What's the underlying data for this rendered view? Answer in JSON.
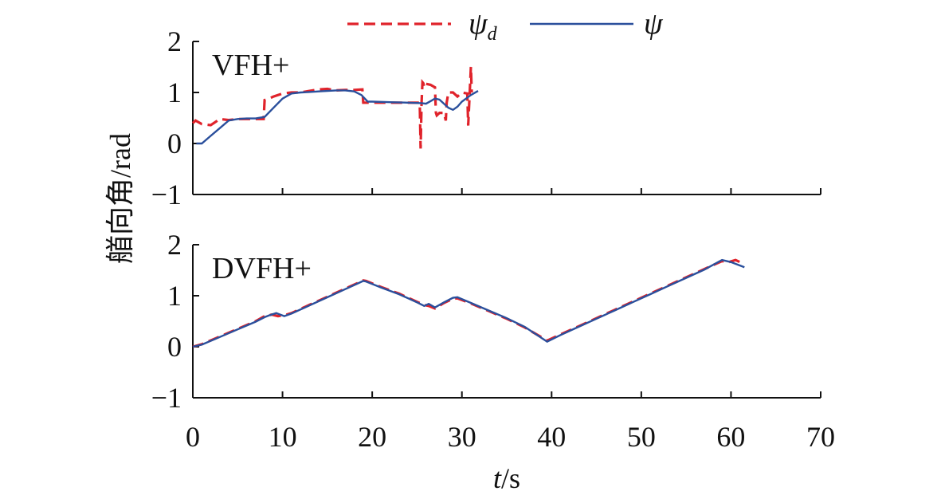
{
  "chart_data": {
    "type": "line",
    "ylabel": "艏向角/rad",
    "xlabel_italic": "t",
    "xlabel_suffix": "/s",
    "xlim": [
      0,
      70
    ],
    "xticks": [
      "0",
      "10",
      "20",
      "30",
      "40",
      "50",
      "60",
      "70"
    ],
    "legend": {
      "placement": "top-center",
      "items": [
        {
          "symbol": "ψ",
          "subscript": "d",
          "color": "#e0232b",
          "style": "dashed"
        },
        {
          "symbol": "ψ",
          "subscript": "",
          "color": "#2a4f9c",
          "style": "solid"
        }
      ]
    },
    "panels": [
      {
        "label": "VFH+",
        "ylim": [
          -1,
          2
        ],
        "yticks": [
          "2",
          "1",
          "0",
          "−1"
        ],
        "series": [
          {
            "style": "dashed",
            "x": [
              0,
              0.3,
              1,
              2,
              3,
              4,
              5,
              6,
              7,
              7.9,
              8,
              8.5,
              9,
              10,
              11,
              12,
              13,
              14,
              15,
              16,
              17,
              18,
              18.9,
              19,
              20,
              22,
              24,
              25.3,
              25.4,
              25.5,
              25.6,
              25.7,
              25.8,
              26,
              26.5,
              27,
              27.1,
              27.2,
              27.5,
              28,
              28.2,
              28.3,
              28.5,
              29,
              29.5,
              30,
              30.6,
              30.7,
              31,
              31.1
            ],
            "y": [
              0.4,
              0.45,
              0.38,
              0.36,
              0.48,
              0.46,
              0.48,
              0.48,
              0.48,
              0.48,
              0.85,
              0.88,
              0.92,
              0.98,
              1.0,
              1.0,
              1.03,
              1.06,
              1.07,
              1.04,
              1.05,
              1.05,
              1.06,
              0.8,
              0.8,
              0.8,
              0.8,
              0.8,
              -0.1,
              0.8,
              1.2,
              1.18,
              1.1,
              1.17,
              1.15,
              1.1,
              0.6,
              0.55,
              0.6,
              0.6,
              0.45,
              0.8,
              1.0,
              1.0,
              0.92,
              1.0,
              0.98,
              0.35,
              1.5,
              1.0
            ]
          },
          {
            "style": "solid",
            "x": [
              0.4,
              1,
              2,
              3,
              4,
              5,
              6,
              7,
              8,
              9,
              10,
              11,
              12,
              13,
              14,
              15,
              16,
              17,
              18,
              18.8,
              19.5,
              20,
              22,
              24,
              25.5,
              26,
              26.5,
              27,
              27.5,
              28,
              28.5,
              29,
              29.5,
              30,
              31,
              31.8
            ],
            "y": [
              0.0,
              0.0,
              0.15,
              0.3,
              0.45,
              0.48,
              0.49,
              0.49,
              0.52,
              0.7,
              0.88,
              0.98,
              1.0,
              1.01,
              1.02,
              1.03,
              1.04,
              1.04,
              1.02,
              0.95,
              0.82,
              0.82,
              0.81,
              0.8,
              0.79,
              0.78,
              0.83,
              0.88,
              0.86,
              0.78,
              0.7,
              0.66,
              0.72,
              0.82,
              0.95,
              1.03
            ]
          }
        ]
      },
      {
        "label": "DVFH+",
        "ylim": [
          -1,
          2
        ],
        "yticks": [
          "2",
          "1",
          "0",
          "−1"
        ],
        "series": [
          {
            "style": "dashed",
            "x": [
              0,
              1,
              3,
              5,
              7,
              8,
              8.8,
              9.5,
              10.3,
              11,
              13,
              15,
              17,
              18.5,
              19,
              19.3,
              21,
              23,
              25,
              25.8,
              26.3,
              27,
              28,
              29,
              29.5,
              31,
              33,
              35,
              37,
              39.5,
              41,
              43,
              45,
              47,
              49,
              51,
              53,
              55,
              57,
              59,
              59.6,
              60.5,
              61
            ],
            "y": [
              0.0,
              0.05,
              0.2,
              0.35,
              0.5,
              0.6,
              0.63,
              0.6,
              0.62,
              0.66,
              0.82,
              0.98,
              1.14,
              1.26,
              1.3,
              1.29,
              1.17,
              1.04,
              0.88,
              0.82,
              0.8,
              0.75,
              0.86,
              0.94,
              0.95,
              0.85,
              0.7,
              0.55,
              0.38,
              0.12,
              0.24,
              0.4,
              0.56,
              0.72,
              0.88,
              1.04,
              1.2,
              1.36,
              1.52,
              1.68,
              1.65,
              1.7,
              1.66
            ]
          },
          {
            "style": "solid",
            "x": [
              0,
              1,
              3,
              5,
              7,
              8,
              8.6,
              9.3,
              10.2,
              11,
              13,
              15,
              17,
              18.5,
              19,
              19.3,
              21,
              23,
              25,
              25.8,
              26.3,
              27,
              28,
              29,
              29.5,
              31,
              33,
              35,
              37,
              39.5,
              41,
              43,
              45,
              47,
              49,
              51,
              53,
              55,
              57,
              59,
              60,
              61.5
            ],
            "y": [
              0.0,
              0.04,
              0.19,
              0.34,
              0.49,
              0.58,
              0.62,
              0.66,
              0.6,
              0.65,
              0.81,
              0.97,
              1.13,
              1.25,
              1.29,
              1.28,
              1.16,
              1.03,
              0.87,
              0.8,
              0.84,
              0.77,
              0.87,
              0.96,
              0.97,
              0.86,
              0.71,
              0.56,
              0.39,
              0.1,
              0.23,
              0.39,
              0.55,
              0.71,
              0.87,
              1.03,
              1.19,
              1.35,
              1.51,
              1.7,
              1.66,
              1.56
            ]
          }
        ]
      }
    ]
  }
}
